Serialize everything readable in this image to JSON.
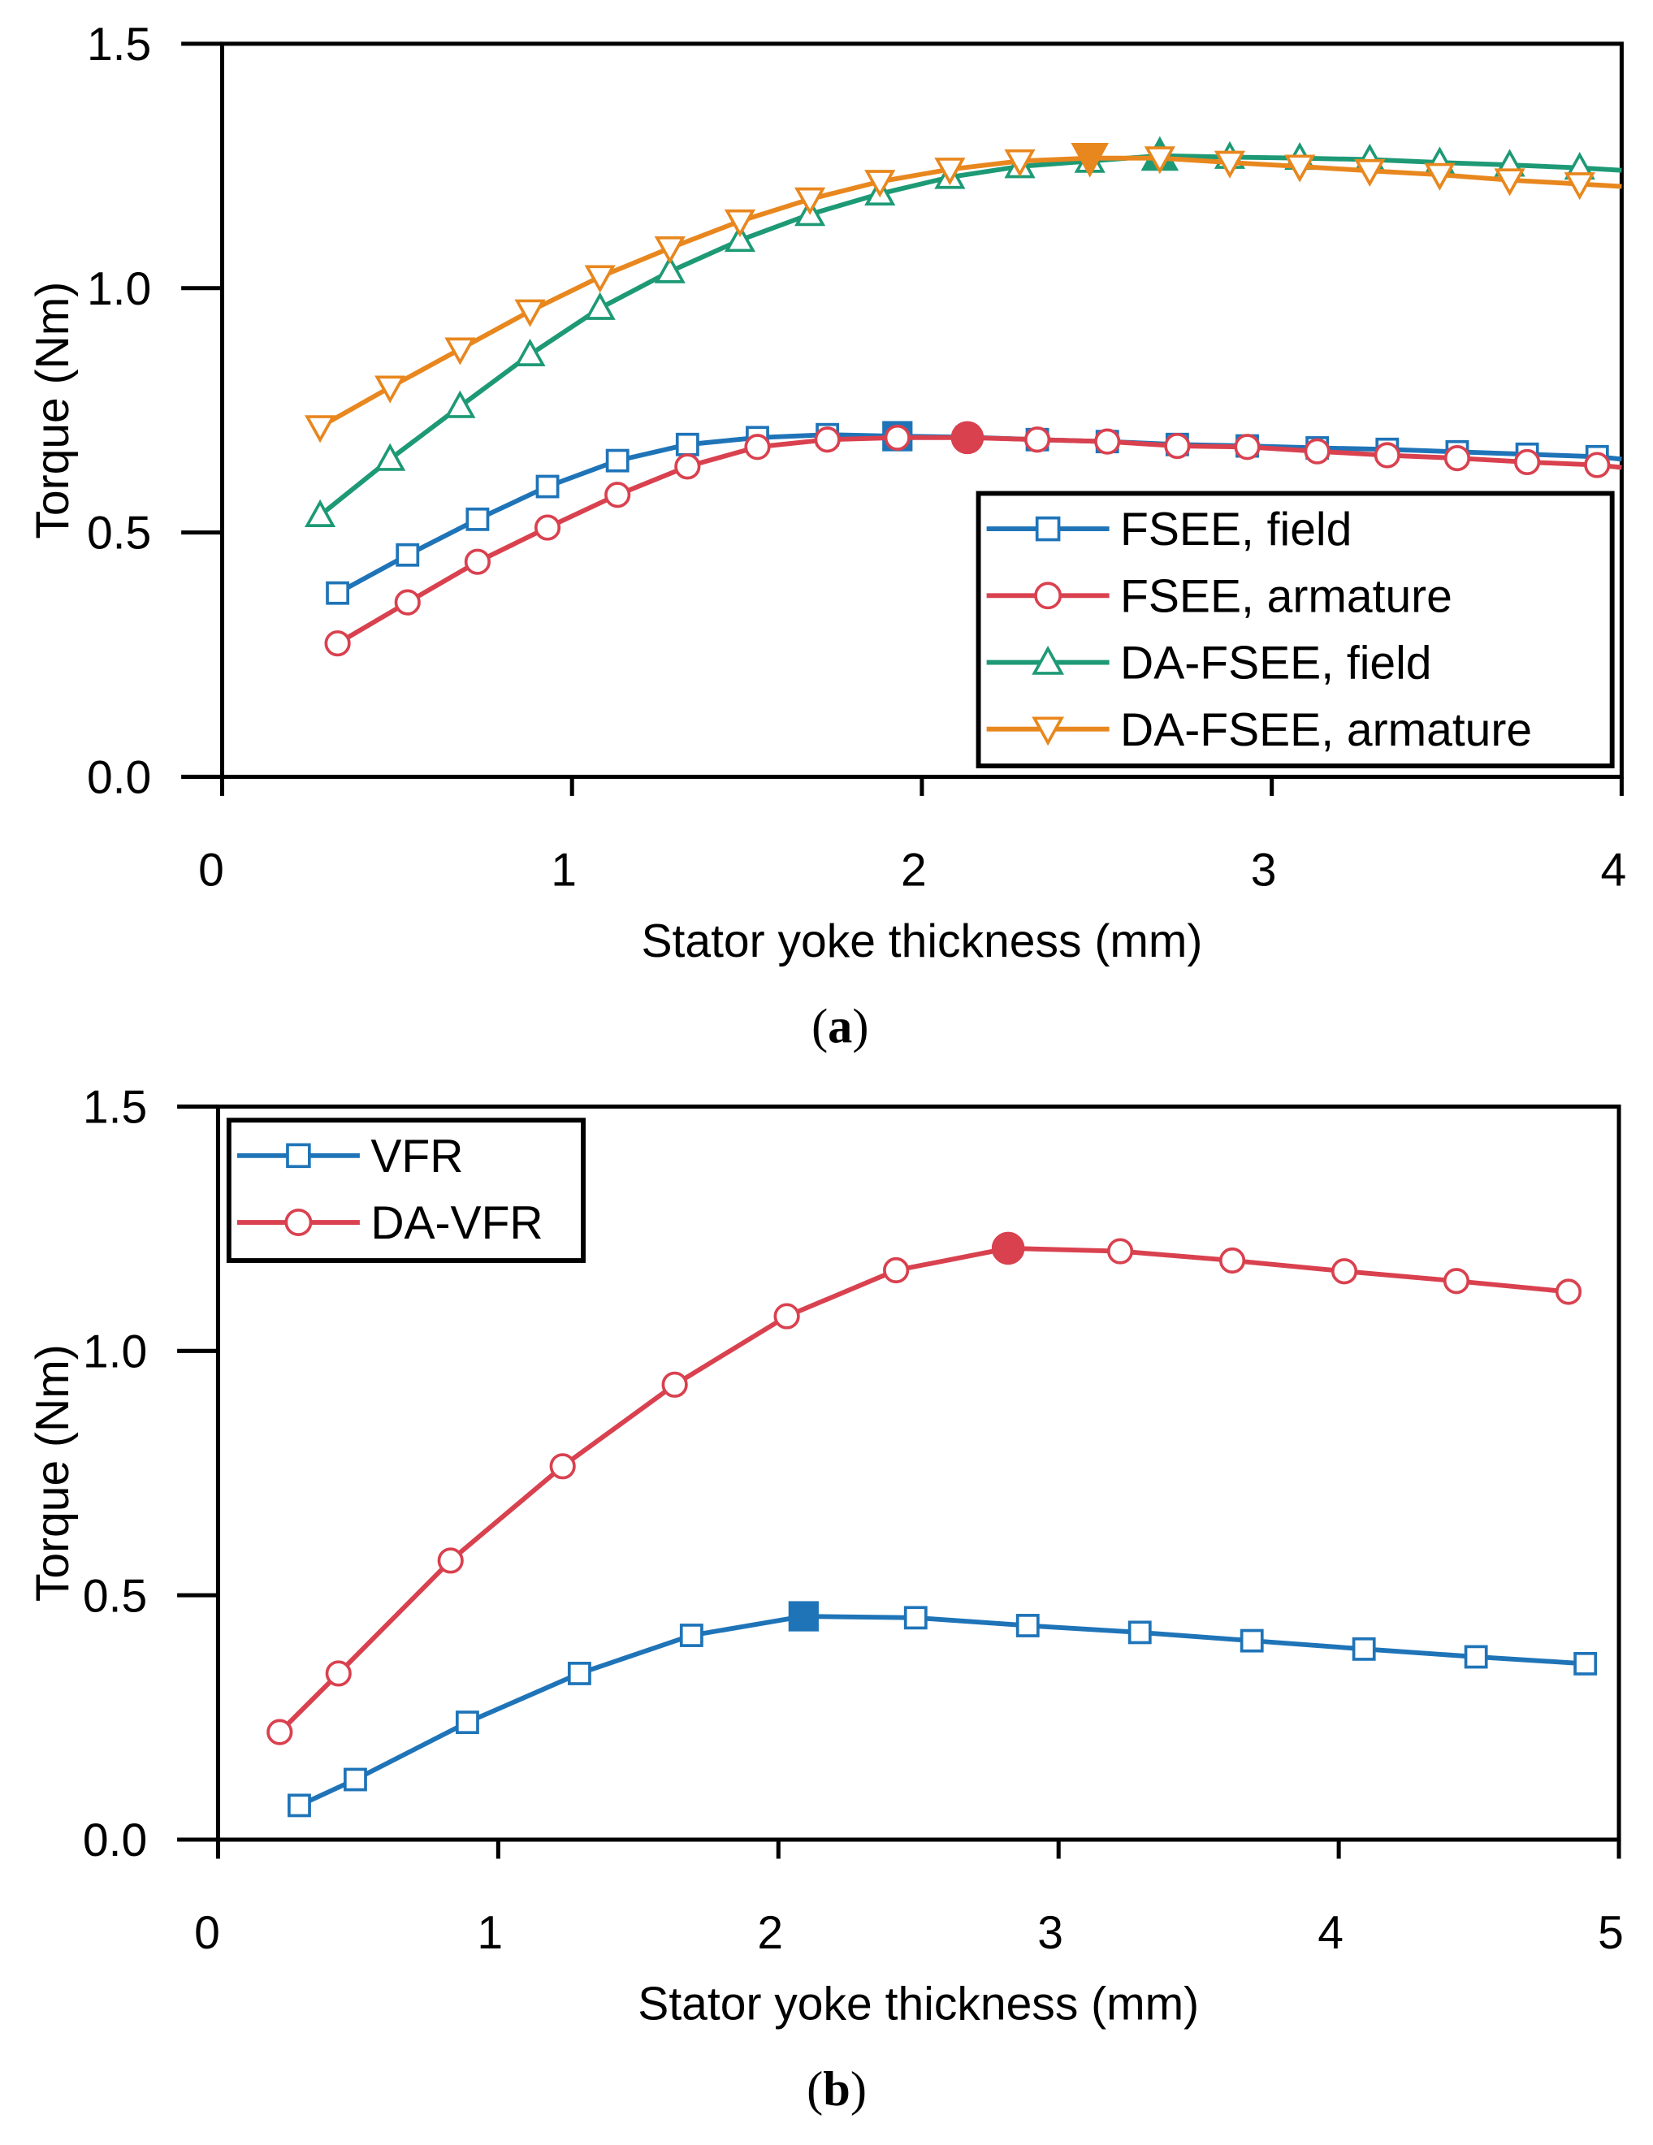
{
  "colors": {
    "blue": "#1f74b8",
    "red": "#d9414f",
    "green": "#1d9a75",
    "orange": "#e8871e"
  },
  "chart_data": [
    {
      "type": "line",
      "caption": "a",
      "xlabel": "Stator yoke thickness (mm)",
      "ylabel": "Torque (Nm)",
      "xlim": [
        0,
        4
      ],
      "ylim": [
        0,
        1.5
      ],
      "xticks": [
        "0",
        "1",
        "2",
        "3",
        "4"
      ],
      "yticks": [
        "0.0",
        "0.5",
        "1.0",
        "1.5"
      ],
      "legend_position": "bottom-right",
      "series": [
        {
          "name": "FSEE, field",
          "color": "blue",
          "marker": "square",
          "x": [
            0.33,
            0.53,
            0.73,
            0.93,
            1.13,
            1.33,
            1.53,
            1.73,
            1.93,
            2.13,
            2.33,
            2.53,
            2.73,
            2.93,
            3.13,
            3.33,
            3.53,
            3.73,
            3.93
          ],
          "y": [
            0.376,
            0.454,
            0.527,
            0.594,
            0.647,
            0.68,
            0.694,
            0.7,
            0.697,
            0.695,
            0.69,
            0.686,
            0.68,
            0.677,
            0.673,
            0.67,
            0.665,
            0.66,
            0.655
          ],
          "highlight_index": 8
        },
        {
          "name": "FSEE, armature",
          "color": "red",
          "marker": "circle",
          "x": [
            0.33,
            0.53,
            0.73,
            0.93,
            1.13,
            1.33,
            1.53,
            1.73,
            1.93,
            2.13,
            2.33,
            2.53,
            2.73,
            2.93,
            3.13,
            3.33,
            3.53,
            3.73,
            3.93
          ],
          "y": [
            0.273,
            0.357,
            0.44,
            0.51,
            0.577,
            0.635,
            0.675,
            0.69,
            0.694,
            0.694,
            0.69,
            0.686,
            0.677,
            0.675,
            0.666,
            0.658,
            0.652,
            0.644,
            0.638
          ],
          "highlight_index": 9
        },
        {
          "name": "DA-FSEE, field",
          "color": "green",
          "marker": "triangle-up",
          "x": [
            0.28,
            0.48,
            0.68,
            0.88,
            1.08,
            1.28,
            1.48,
            1.68,
            1.88,
            2.08,
            2.28,
            2.48,
            2.68,
            2.88,
            3.08,
            3.28,
            3.48,
            3.68,
            3.88
          ],
          "y": [
            0.535,
            0.65,
            0.758,
            0.864,
            0.959,
            1.034,
            1.098,
            1.151,
            1.193,
            1.227,
            1.249,
            1.26,
            1.271,
            1.268,
            1.266,
            1.263,
            1.257,
            1.252,
            1.246
          ],
          "highlight_index": 12
        },
        {
          "name": "DA-FSEE, armature",
          "color": "orange",
          "marker": "triangle-down",
          "x": [
            0.28,
            0.48,
            0.68,
            0.88,
            1.08,
            1.28,
            1.48,
            1.68,
            1.88,
            2.08,
            2.28,
            2.48,
            2.68,
            2.88,
            3.08,
            3.28,
            3.48,
            3.68,
            3.88
          ],
          "y": [
            0.716,
            0.797,
            0.875,
            0.953,
            1.023,
            1.082,
            1.137,
            1.182,
            1.218,
            1.243,
            1.26,
            1.266,
            1.266,
            1.257,
            1.249,
            1.24,
            1.232,
            1.221,
            1.213
          ],
          "highlight_index": 11
        }
      ]
    },
    {
      "type": "line",
      "caption": "b",
      "xlabel": "Stator yoke thickness (mm)",
      "ylabel": "Torque (Nm)",
      "xlim": [
        0,
        5
      ],
      "ylim": [
        0,
        1.5
      ],
      "xticks": [
        "0",
        "1",
        "2",
        "3",
        "4",
        "5"
      ],
      "yticks": [
        "0.0",
        "0.5",
        "1.0",
        "1.5"
      ],
      "legend_position": "top-left",
      "series": [
        {
          "name": "VFR",
          "color": "blue",
          "marker": "square",
          "x": [
            0.29,
            0.49,
            0.89,
            1.29,
            1.69,
            2.09,
            2.49,
            2.89,
            3.29,
            3.69,
            4.09,
            4.49,
            4.88
          ],
          "y": [
            0.07,
            0.123,
            0.24,
            0.34,
            0.418,
            0.457,
            0.454,
            0.438,
            0.424,
            0.407,
            0.39,
            0.374,
            0.36
          ],
          "highlight_index": 5
        },
        {
          "name": "DA-VFR",
          "color": "red",
          "marker": "circle",
          "x": [
            0.22,
            0.43,
            0.83,
            1.23,
            1.63,
            2.03,
            2.42,
            2.82,
            3.22,
            3.62,
            4.02,
            4.42,
            4.82
          ],
          "y": [
            0.22,
            0.34,
            0.571,
            0.764,
            0.931,
            1.071,
            1.165,
            1.21,
            1.204,
            1.185,
            1.163,
            1.143,
            1.121
          ],
          "highlight_index": 7
        }
      ]
    }
  ]
}
